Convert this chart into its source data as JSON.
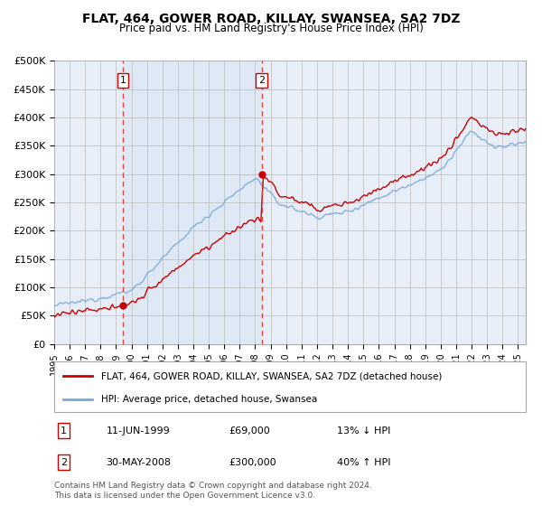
{
  "title": "FLAT, 464, GOWER ROAD, KILLAY, SWANSEA, SA2 7DZ",
  "subtitle": "Price paid vs. HM Land Registry's House Price Index (HPI)",
  "ylabel_ticks": [
    "£0",
    "£50K",
    "£100K",
    "£150K",
    "£200K",
    "£250K",
    "£300K",
    "£350K",
    "£400K",
    "£450K",
    "£500K"
  ],
  "ytick_values": [
    0,
    50000,
    100000,
    150000,
    200000,
    250000,
    300000,
    350000,
    400000,
    450000,
    500000
  ],
  "ylim": [
    0,
    500000
  ],
  "xlim_start": 1995.0,
  "xlim_end": 2025.5,
  "sale1_year": 1999.44,
  "sale1_price": 69000,
  "sale1_label": "11-JUN-1999",
  "sale1_pct": "13% ↓ HPI",
  "sale2_year": 2008.41,
  "sale2_price": 300000,
  "sale2_label": "30-MAY-2008",
  "sale2_pct": "40% ↑ HPI",
  "line_color_property": "#cc0000",
  "line_color_hpi": "#7aaadd",
  "legend_property": "FLAT, 464, GOWER ROAD, KILLAY, SWANSEA, SA2 7DZ (detached house)",
  "legend_hpi": "HPI: Average price, detached house, Swansea",
  "footer": "Contains HM Land Registry data © Crown copyright and database right 2024.\nThis data is licensed under the Open Government Licence v3.0.",
  "bg_chart": "#e8eef8",
  "bg_between": "#dce6f5",
  "grid_color": "#bbbbbb",
  "vline_color": "#dd4444",
  "marker_box_color": "#cc0000",
  "shade_color": "#dce6f5"
}
